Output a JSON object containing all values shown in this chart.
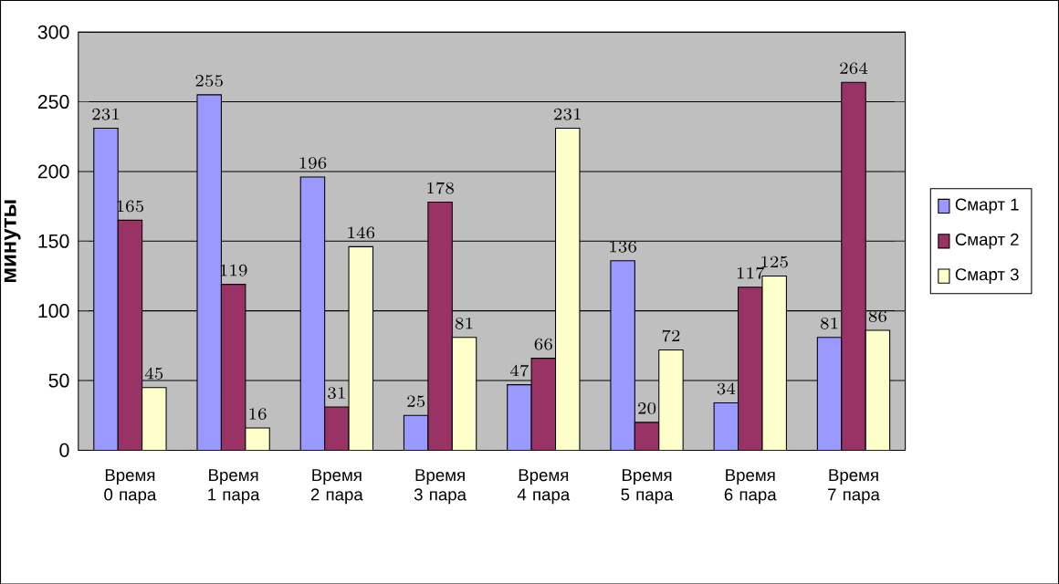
{
  "chart_data": {
    "type": "bar",
    "ylabel": "минуты",
    "categories": [
      "Время 0 пара",
      "Время 1 пара",
      "Время 2 пара",
      "Время 3 пара",
      "Время 4 пара",
      "Время 5 пара",
      "Время 6 пара",
      "Время 7 пара"
    ],
    "series": [
      {
        "name": "Смарт 1",
        "color": "#9999ff",
        "values": [
          231,
          255,
          196,
          25,
          47,
          136,
          34,
          81
        ]
      },
      {
        "name": "Смарт 2",
        "color": "#993366",
        "values": [
          165,
          119,
          31,
          178,
          66,
          20,
          117,
          264
        ]
      },
      {
        "name": "Смарт 3",
        "color": "#ffffcc",
        "values": [
          45,
          16,
          146,
          81,
          231,
          72,
          125,
          86
        ]
      }
    ],
    "ylim": [
      0,
      300
    ],
    "yticks": [
      0,
      50,
      100,
      150,
      200,
      250,
      300
    ],
    "grid": "y",
    "legend": "right",
    "data_labels": true
  }
}
